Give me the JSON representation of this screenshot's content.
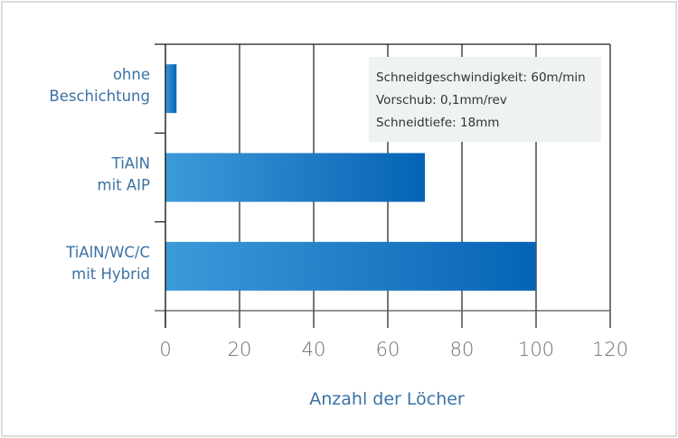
{
  "chart_data": {
    "type": "bar",
    "orientation": "horizontal",
    "categories": [
      [
        "ohne",
        "Beschichtung"
      ],
      [
        "TiAlN",
        "mit AIP"
      ],
      [
        "TiAlN/WC/C",
        "mit Hybrid"
      ]
    ],
    "values": [
      3,
      70,
      100
    ],
    "xlabel": "Anzahl der Löcher",
    "ylabel": "",
    "xlim": [
      0,
      120
    ],
    "xticks": [
      "0",
      "20",
      "40",
      "60",
      "80",
      "100",
      "120"
    ],
    "grid": "vertical",
    "annotation": [
      "Schneidgeschwindigkeit: 60m/min",
      "Vorschub: 0,1mm/rev",
      "Schneidtiefe: 18mm"
    ],
    "bar_color_start": "#3d9ad9",
    "bar_color_end": "#0563b5",
    "text_color": "#3b72a4"
  }
}
